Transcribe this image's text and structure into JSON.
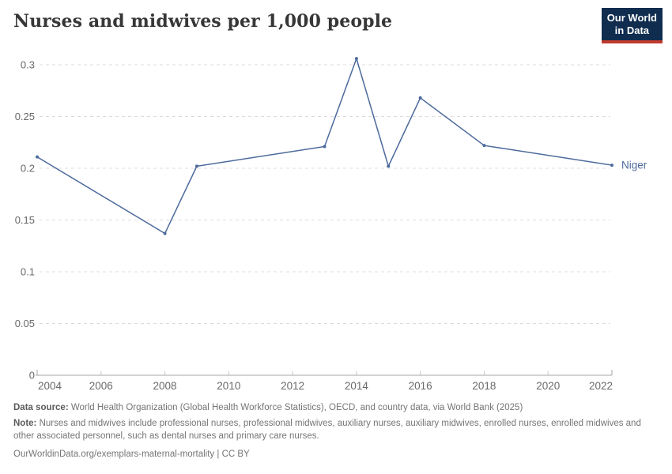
{
  "header": {
    "title": "Nurses and midwives per 1,000 people",
    "logo": {
      "line1": "Our World",
      "line2": "in Data",
      "bg_color": "#102d50",
      "accent_color": "#c13a2e"
    }
  },
  "chart_data": {
    "type": "line",
    "title": "Nurses and midwives per 1,000 people",
    "x": [
      2004,
      2008,
      2009,
      2013,
      2014,
      2015,
      2016,
      2018,
      2022
    ],
    "series": [
      {
        "name": "Niger",
        "color": "#4c6a9c",
        "values": [
          0.211,
          0.137,
          0.202,
          0.221,
          0.306,
          0.202,
          0.268,
          0.222,
          0.203
        ]
      }
    ],
    "xlabel": "",
    "ylabel": "",
    "x_range": [
      2004,
      2022
    ],
    "y_range": [
      0,
      0.3
    ],
    "x_ticks": [
      2004,
      2006,
      2008,
      2010,
      2012,
      2014,
      2016,
      2018,
      2020,
      2022
    ],
    "y_tick_labels": [
      "0",
      "0.05",
      "0.1",
      "0.15",
      "0.2",
      "0.25",
      "0.3"
    ],
    "grid": "horizontal-dashed",
    "legend_position": "line-end-label",
    "end_label": "Niger"
  },
  "footer": {
    "source_label": "Data source:",
    "source_text": "World Health Organization (Global Health Workforce Statistics), OECD, and country data, via World Bank (2025)",
    "note_label": "Note:",
    "note_text": "Nurses and midwives include professional nurses, professional midwives, auxiliary nurses, auxiliary midwives, enrolled nurses, enrolled midwives and other associated personnel, such as dental nurses and primary care nurses.",
    "url": "OurWorldinData.org/exemplars-maternal-mortality",
    "separator": "|",
    "license": "CC BY"
  },
  "colors": {
    "line": "#4c6a9c",
    "gridline": "#dcdcdc",
    "axis": "#a6a6a6",
    "minor_tick": "#c6c6c6",
    "tick_label": "#696969",
    "title": "#373737",
    "footer_text": "#757575"
  }
}
